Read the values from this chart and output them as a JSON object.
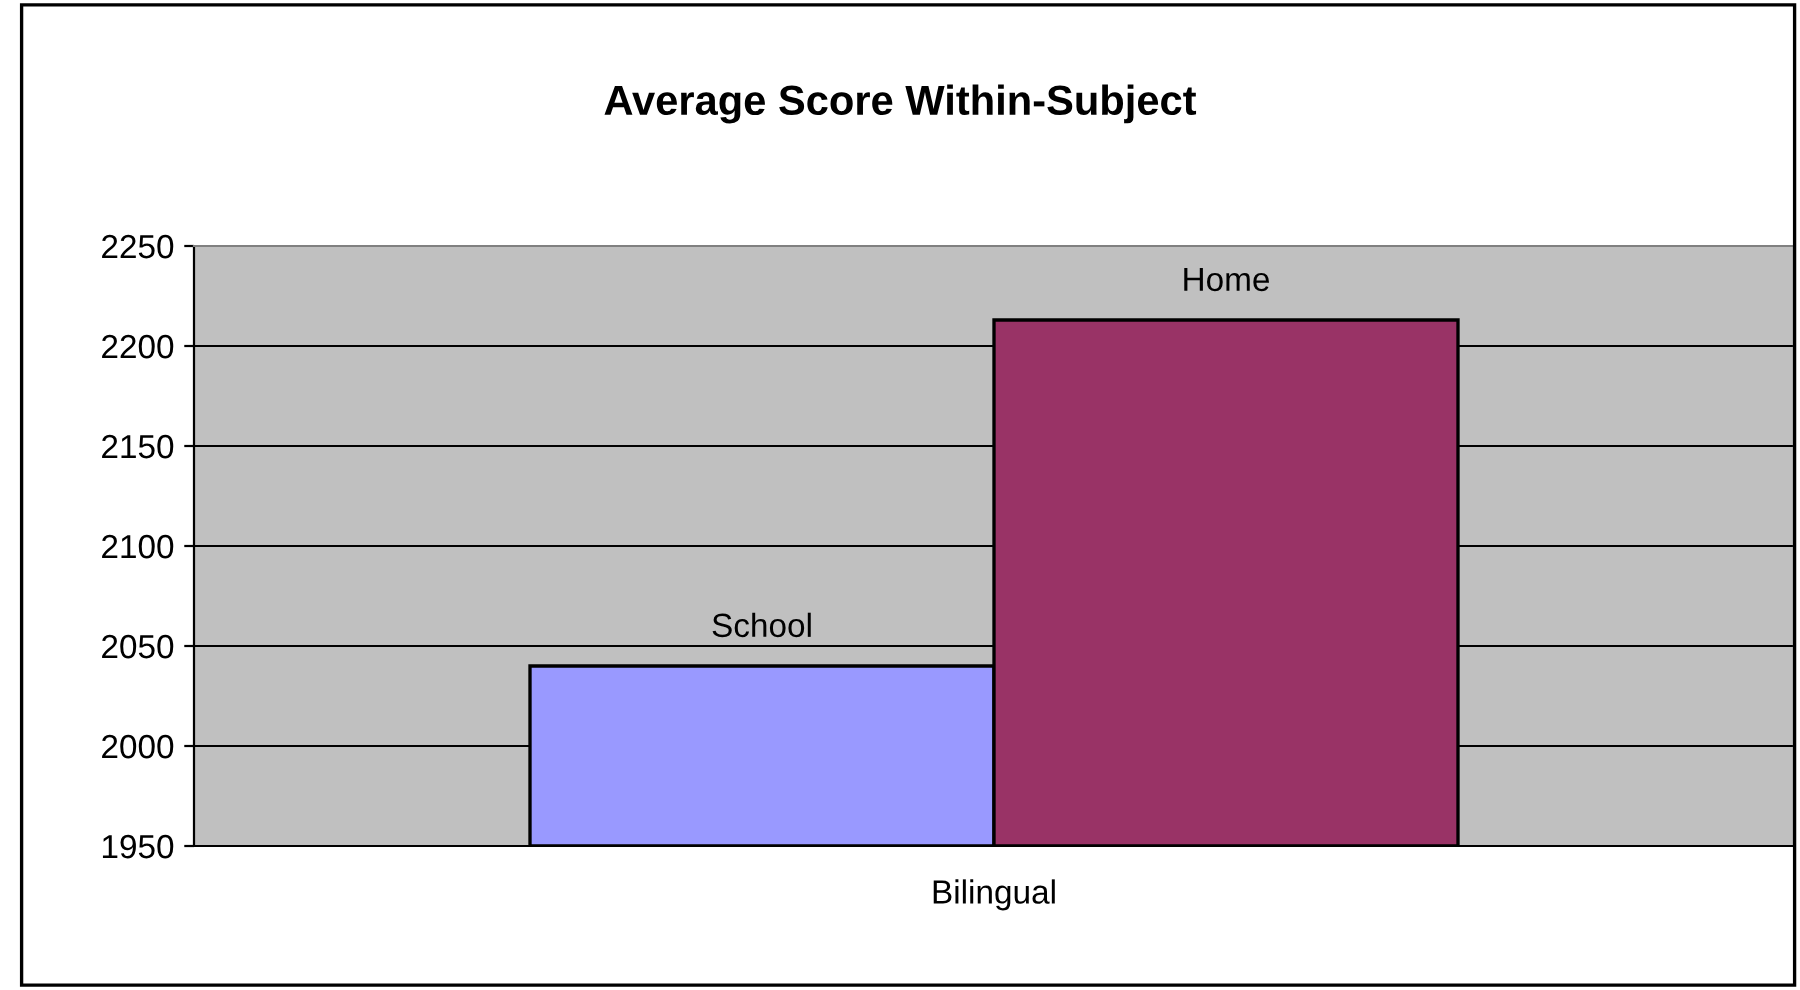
{
  "chart_data": {
    "type": "bar",
    "title": "Average Score Within-Subject",
    "categories": [
      "Bilingual"
    ],
    "series": [
      {
        "name": "School",
        "color": "#9999ff",
        "values": [
          2040
        ]
      },
      {
        "name": "Home",
        "color": "#993366",
        "values": [
          2213
        ]
      }
    ],
    "ylim": [
      1950,
      2250
    ],
    "yticks": [
      1950,
      2000,
      2050,
      2100,
      2150,
      2200,
      2250
    ],
    "grid": "y",
    "legend": false
  }
}
